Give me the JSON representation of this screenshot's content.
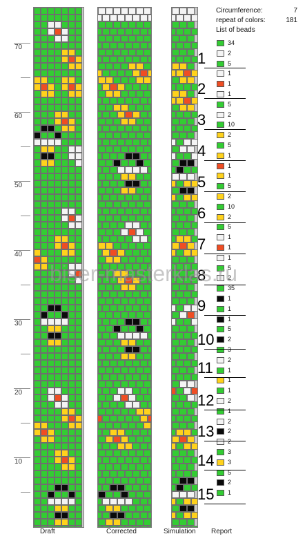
{
  "ruler": {
    "labels": [
      "70",
      "60",
      "50",
      "40",
      "30",
      "20",
      "10"
    ]
  },
  "columns": {
    "labels": [
      "Draft",
      "Corrected",
      "Simulation",
      "Report"
    ]
  },
  "report": {
    "circumference_label": "Circumference:",
    "circumference_value": "7",
    "repeat_label": "repeat of colors:",
    "repeat_value": "181",
    "list_label": "List of beads"
  },
  "watermark": "biser-masterklas.ru",
  "colors": {
    "green": "#33cc33",
    "white": "#f4f4f4",
    "yellow": "#ffd21c",
    "red": "#ef4d23",
    "black": "#0a0a0a"
  },
  "beads": [
    {
      "color": "green",
      "count": "34"
    },
    {
      "color": "white",
      "count": "2"
    },
    {
      "color": "green",
      "count": "5"
    },
    {
      "color": "white",
      "count": "1"
    },
    {
      "color": "red",
      "count": "1"
    },
    {
      "color": "white",
      "count": "1"
    },
    {
      "color": "green",
      "count": "5"
    },
    {
      "color": "white",
      "count": "2"
    },
    {
      "color": "green",
      "count": "10"
    },
    {
      "color": "yellow",
      "count": "2"
    },
    {
      "color": "green",
      "count": "5"
    },
    {
      "color": "yellow",
      "count": "1"
    },
    {
      "color": "red",
      "count": "1"
    },
    {
      "color": "yellow",
      "count": "1"
    },
    {
      "color": "green",
      "count": "5"
    },
    {
      "color": "yellow",
      "count": "2"
    },
    {
      "color": "green",
      "count": "10"
    },
    {
      "color": "yellow",
      "count": "2"
    },
    {
      "color": "green",
      "count": "5"
    },
    {
      "color": "white",
      "count": "1"
    },
    {
      "color": "red",
      "count": "1"
    },
    {
      "color": "white",
      "count": "1"
    },
    {
      "color": "green",
      "count": "5"
    },
    {
      "color": "white",
      "count": "2"
    },
    {
      "color": "green",
      "count": "35"
    },
    {
      "color": "black",
      "count": "1"
    },
    {
      "color": "green",
      "count": "1"
    },
    {
      "color": "black",
      "count": "1"
    },
    {
      "color": "green",
      "count": "5"
    },
    {
      "color": "black",
      "count": "2"
    },
    {
      "color": "green",
      "count": "3"
    },
    {
      "color": "white",
      "count": "2"
    },
    {
      "color": "green",
      "count": "1"
    },
    {
      "color": "yellow",
      "count": "1"
    },
    {
      "color": "green",
      "count": "1"
    },
    {
      "color": "white",
      "count": "2"
    },
    {
      "color": "green",
      "count": "1"
    },
    {
      "color": "white",
      "count": "2"
    },
    {
      "color": "black",
      "count": "2"
    },
    {
      "color": "white",
      "count": "2"
    },
    {
      "color": "green",
      "count": "3"
    },
    {
      "color": "yellow",
      "count": "3"
    },
    {
      "color": "green",
      "count": "5"
    },
    {
      "color": "black",
      "count": "2"
    },
    {
      "color": "green",
      "count": "1"
    }
  ],
  "steps": [
    "1",
    "2",
    "3",
    "4",
    "5",
    "6",
    "7",
    "8",
    "9",
    "10",
    "11",
    "12",
    "13",
    "14",
    "15"
  ]
}
